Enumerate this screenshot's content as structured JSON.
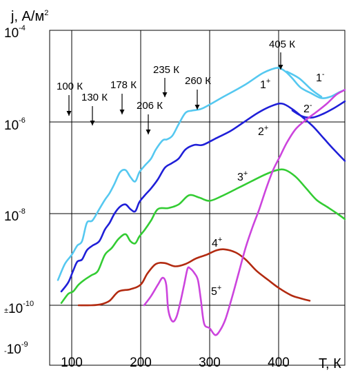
{
  "chart_data": {
    "type": "line",
    "title": "",
    "ylabel": "j, А/м",
    "ylabel_exponent": "2",
    "xlabel": "Т, К",
    "x_ticks": [
      "100",
      "200",
      "300",
      "400"
    ],
    "xlim": [
      70,
      500
    ],
    "y_ticks": [
      {
        "base": "10",
        "exp": "-4",
        "prefix": ""
      },
      {
        "base": "10",
        "exp": "-6",
        "prefix": ""
      },
      {
        "base": "10",
        "exp": "-8",
        "prefix": ""
      },
      {
        "base": "10",
        "exp": "-10",
        "prefix": "±"
      },
      {
        "base": "10",
        "exp": "-9",
        "prefix": "-"
      }
    ],
    "y_scale": "log, with symmetric negative section below ±10^-10",
    "grid": true,
    "annotations": [
      {
        "text": "100 К",
        "x": 100
      },
      {
        "text": "130 К",
        "x": 132
      },
      {
        "text": "178 К",
        "x": 175
      },
      {
        "text": "206 К",
        "x": 212
      },
      {
        "text": "235 К",
        "x": 237
      },
      {
        "text": "260 К",
        "x": 283
      },
      {
        "text": "405 К",
        "x": 405
      }
    ],
    "series": [
      {
        "label": "1",
        "sign": "+",
        "color": "#55c8f0",
        "points": [
          [
            80,
            -9.45
          ],
          [
            90,
            -9.1
          ],
          [
            100,
            -8.9
          ],
          [
            108,
            -8.7
          ],
          [
            115,
            -8.6
          ],
          [
            122,
            -8.2
          ],
          [
            130,
            -8.15
          ],
          [
            140,
            -7.9
          ],
          [
            148,
            -7.7
          ],
          [
            155,
            -7.55
          ],
          [
            162,
            -7.35
          ],
          [
            170,
            -7.1
          ],
          [
            178,
            -7.05
          ],
          [
            185,
            -7.2
          ],
          [
            192,
            -7.3
          ],
          [
            198,
            -7.1
          ],
          [
            206,
            -6.95
          ],
          [
            215,
            -6.8
          ],
          [
            222,
            -6.6
          ],
          [
            232,
            -6.4
          ],
          [
            238,
            -6.38
          ],
          [
            246,
            -6.3
          ],
          [
            255,
            -6.05
          ],
          [
            265,
            -5.8
          ],
          [
            275,
            -5.75
          ],
          [
            290,
            -5.7
          ],
          [
            320,
            -5.45
          ],
          [
            350,
            -5.2
          ],
          [
            375,
            -4.95
          ],
          [
            390,
            -4.85
          ],
          [
            400,
            -4.82
          ],
          [
            410,
            -4.9
          ],
          [
            420,
            -5.05
          ],
          [
            432,
            -5.25
          ],
          [
            448,
            -5.38
          ],
          [
            462,
            -5.48
          ],
          [
            475,
            -5.45
          ],
          [
            488,
            -5.35
          ],
          [
            496,
            -5.3
          ]
        ]
      },
      {
        "label": "1",
        "sign": "-",
        "color": "#55c8f0",
        "points": [
          [
            412,
            -4.9
          ],
          [
            430,
            -5.05
          ],
          [
            448,
            -5.3
          ],
          [
            462,
            -5.45
          ]
        ]
      },
      {
        "label": "2",
        "sign": "+",
        "color": "#1f1fd8",
        "points": [
          [
            85,
            -9.7
          ],
          [
            95,
            -9.5
          ],
          [
            102,
            -9.25
          ],
          [
            108,
            -9.05
          ],
          [
            115,
            -9.0
          ],
          [
            122,
            -8.8
          ],
          [
            130,
            -8.7
          ],
          [
            140,
            -8.6
          ],
          [
            148,
            -8.35
          ],
          [
            155,
            -8.2
          ],
          [
            162,
            -8.0
          ],
          [
            170,
            -7.85
          ],
          [
            178,
            -7.8
          ],
          [
            185,
            -7.9
          ],
          [
            192,
            -7.95
          ],
          [
            198,
            -7.75
          ],
          [
            206,
            -7.6
          ],
          [
            215,
            -7.45
          ],
          [
            225,
            -7.25
          ],
          [
            235,
            -7.0
          ],
          [
            245,
            -6.9
          ],
          [
            255,
            -6.8
          ],
          [
            265,
            -6.6
          ],
          [
            278,
            -6.5
          ],
          [
            290,
            -6.5
          ],
          [
            310,
            -6.35
          ],
          [
            330,
            -6.2
          ],
          [
            350,
            -6.0
          ],
          [
            370,
            -5.8
          ],
          [
            390,
            -5.65
          ],
          [
            405,
            -5.6
          ],
          [
            420,
            -5.72
          ],
          [
            435,
            -5.9
          ],
          [
            450,
            -6.1
          ],
          [
            465,
            -6.35
          ],
          [
            480,
            -6.6
          ],
          [
            496,
            -6.85
          ]
        ]
      },
      {
        "label": "2",
        "sign": "-",
        "color": "#1f1fd8",
        "points": [
          [
            420,
            -5.75
          ],
          [
            435,
            -5.88
          ],
          [
            450,
            -5.9
          ],
          [
            465,
            -5.82
          ],
          [
            480,
            -5.7
          ],
          [
            496,
            -5.55
          ]
        ]
      },
      {
        "label": "3",
        "sign": "+",
        "color": "#33cc33",
        "points": [
          [
            85,
            -9.95
          ],
          [
            95,
            -9.75
          ],
          [
            102,
            -9.7
          ],
          [
            110,
            -9.55
          ],
          [
            118,
            -9.45
          ],
          [
            128,
            -9.35
          ],
          [
            138,
            -9.25
          ],
          [
            148,
            -8.9
          ],
          [
            158,
            -8.75
          ],
          [
            168,
            -8.55
          ],
          [
            178,
            -8.45
          ],
          [
            185,
            -8.6
          ],
          [
            192,
            -8.65
          ],
          [
            198,
            -8.5
          ],
          [
            206,
            -8.35
          ],
          [
            215,
            -8.15
          ],
          [
            225,
            -7.9
          ],
          [
            240,
            -7.88
          ],
          [
            255,
            -7.8
          ],
          [
            270,
            -7.6
          ],
          [
            285,
            -7.65
          ],
          [
            300,
            -7.72
          ],
          [
            320,
            -7.6
          ],
          [
            340,
            -7.45
          ],
          [
            360,
            -7.3
          ],
          [
            380,
            -7.15
          ],
          [
            398,
            -7.05
          ],
          [
            410,
            -7.05
          ],
          [
            425,
            -7.2
          ],
          [
            440,
            -7.45
          ],
          [
            455,
            -7.7
          ],
          [
            470,
            -7.85
          ],
          [
            485,
            -8.0
          ],
          [
            496,
            -8.12
          ]
        ]
      },
      {
        "label": "4",
        "sign": "+",
        "color": "#b22a10",
        "points": [
          [
            110,
            -10.0
          ],
          [
            128,
            -10.0
          ],
          [
            142,
            -9.98
          ],
          [
            155,
            -9.9
          ],
          [
            168,
            -9.7
          ],
          [
            185,
            -9.65
          ],
          [
            200,
            -9.55
          ],
          [
            210,
            -9.3
          ],
          [
            222,
            -9.1
          ],
          [
            235,
            -9.08
          ],
          [
            250,
            -9.15
          ],
          [
            265,
            -9.1
          ],
          [
            280,
            -8.98
          ],
          [
            295,
            -8.9
          ],
          [
            310,
            -8.8
          ],
          [
            322,
            -8.78
          ],
          [
            338,
            -8.85
          ],
          [
            352,
            -9.0
          ],
          [
            368,
            -9.25
          ],
          [
            385,
            -9.45
          ],
          [
            400,
            -9.62
          ],
          [
            418,
            -9.78
          ],
          [
            432,
            -9.85
          ],
          [
            445,
            -9.9
          ]
        ]
      },
      {
        "label": "5",
        "sign": "+",
        "color": "#cc44dd",
        "points": [
          [
            205,
            -10.0
          ],
          [
            215,
            -9.8
          ],
          [
            225,
            -9.55
          ],
          [
            232,
            -9.4
          ],
          [
            237,
            -9.55
          ],
          [
            240,
            -10.1
          ],
          [
            246,
            -10.35
          ],
          [
            252,
            -10.25
          ],
          [
            258,
            -9.9
          ],
          [
            263,
            -9.55
          ],
          [
            268,
            -9.2
          ],
          [
            272,
            -9.2
          ],
          [
            278,
            -9.3
          ],
          [
            283,
            -9.45
          ],
          [
            287,
            -9.85
          ],
          [
            292,
            -10.4
          ],
          [
            300,
            -10.5
          ],
          [
            308,
            -10.65
          ],
          [
            315,
            -10.55
          ],
          [
            323,
            -10.3
          ],
          [
            332,
            -9.85
          ],
          [
            342,
            -9.3
          ],
          [
            352,
            -8.75
          ],
          [
            362,
            -8.3
          ],
          [
            372,
            -7.9
          ],
          [
            382,
            -7.45
          ],
          [
            392,
            -7.05
          ],
          [
            402,
            -6.75
          ],
          [
            412,
            -6.45
          ],
          [
            425,
            -6.15
          ],
          [
            440,
            -5.95
          ],
          [
            455,
            -5.78
          ],
          [
            470,
            -5.6
          ],
          [
            484,
            -5.4
          ],
          [
            496,
            -5.3
          ]
        ]
      }
    ]
  }
}
